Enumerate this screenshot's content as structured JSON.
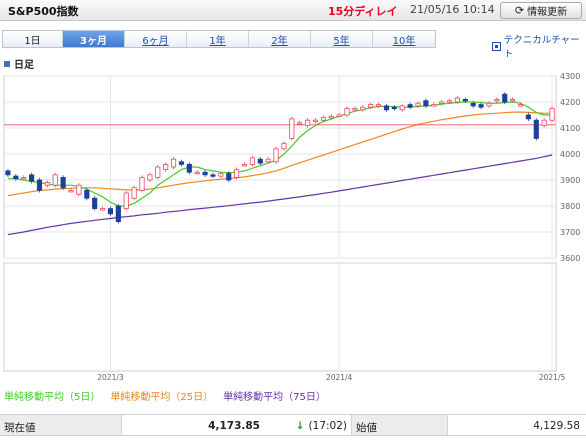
{
  "header": {
    "title": "S&P500指数",
    "delay": "15分ディレイ",
    "timestamp": "21/05/16 10:14",
    "refresh_label": "情報更新",
    "refresh_icon": "refresh-icon"
  },
  "periods": {
    "tabs": [
      "1日",
      "3ヶ月",
      "6ヶ月",
      "1年",
      "2年",
      "5年",
      "10年"
    ],
    "active": "3ヶ月"
  },
  "technical_chart_link": "テクニカルチャート",
  "daily_label": "日足",
  "chart_data": {
    "type": "candlestick",
    "y_ticks": [
      "4300",
      "4200",
      "4100",
      "4000",
      "3900",
      "3800",
      "3700",
      "3600"
    ],
    "ylim": [
      3600,
      4300
    ],
    "x_labels": [
      {
        "label": "2021/3",
        "index": 13
      },
      {
        "label": "2021/4",
        "index": 42
      },
      {
        "label": "2021/5",
        "index": 69
      }
    ],
    "reference_line": 4112,
    "candles": [
      [
        3935,
        3920
      ],
      [
        3915,
        3905
      ],
      [
        3910,
        3910
      ],
      [
        3920,
        3895
      ],
      [
        3900,
        3860
      ],
      [
        3880,
        3890
      ],
      [
        3880,
        3920
      ],
      [
        3910,
        3870
      ],
      [
        3860,
        3860
      ],
      [
        3845,
        3880
      ],
      [
        3860,
        3830
      ],
      [
        3830,
        3790
      ],
      [
        3790,
        3790
      ],
      [
        3790,
        3770
      ],
      [
        3800,
        3740
      ],
      [
        3790,
        3850
      ],
      [
        3830,
        3870
      ],
      [
        3860,
        3910
      ],
      [
        3900,
        3920
      ],
      [
        3910,
        3950
      ],
      [
        3940,
        3960
      ],
      [
        3950,
        3980
      ],
      [
        3970,
        3960
      ],
      [
        3960,
        3930
      ],
      [
        3930,
        3930
      ],
      [
        3930,
        3920
      ],
      [
        3920,
        3915
      ],
      [
        3915,
        3925
      ],
      [
        3925,
        3900
      ],
      [
        3910,
        3940
      ],
      [
        3960,
        3960
      ],
      [
        3960,
        3985
      ],
      [
        3980,
        3965
      ],
      [
        3970,
        3980
      ],
      [
        3970,
        4020
      ],
      [
        4020,
        4040
      ],
      [
        4060,
        4135
      ],
      [
        4120,
        4120
      ],
      [
        4110,
        4130
      ],
      [
        4125,
        4130
      ],
      [
        4130,
        4140
      ],
      [
        4140,
        4145
      ],
      [
        4150,
        4150
      ],
      [
        4150,
        4175
      ],
      [
        4175,
        4175
      ],
      [
        4170,
        4180
      ],
      [
        4180,
        4190
      ],
      [
        4185,
        4190
      ],
      [
        4185,
        4170
      ],
      [
        4180,
        4175
      ],
      [
        4170,
        4185
      ],
      [
        4190,
        4180
      ],
      [
        4185,
        4195
      ],
      [
        4205,
        4185
      ],
      [
        4190,
        4190
      ],
      [
        4195,
        4200
      ],
      [
        4200,
        4205
      ],
      [
        4200,
        4215
      ],
      [
        4210,
        4205
      ],
      [
        4195,
        4185
      ],
      [
        4190,
        4180
      ],
      [
        4185,
        4195
      ],
      [
        4205,
        4210
      ],
      [
        4230,
        4200
      ],
      [
        4205,
        4210
      ],
      [
        4190,
        4190
      ],
      [
        4150,
        4135
      ],
      [
        4130,
        4060
      ],
      [
        4110,
        4130
      ],
      [
        4130,
        4175
      ]
    ],
    "ma5": [
      3905,
      3905,
      3900,
      3895,
      3890,
      3885,
      3880,
      3880,
      3880,
      3875,
      3865,
      3850,
      3835,
      3815,
      3800,
      3800,
      3810,
      3830,
      3850,
      3880,
      3900,
      3920,
      3940,
      3950,
      3950,
      3940,
      3935,
      3930,
      3928,
      3930,
      3935,
      3945,
      3955,
      3965,
      3975,
      4000,
      4030,
      4065,
      4090,
      4110,
      4125,
      4135,
      4145,
      4155,
      4165,
      4170,
      4178,
      4183,
      4183,
      4182,
      4180,
      4180,
      4183,
      4185,
      4187,
      4192,
      4195,
      4198,
      4200,
      4200,
      4198,
      4195,
      4195,
      4198,
      4200,
      4195,
      4180,
      4160,
      4150,
      4150
    ],
    "ma25": [
      3840,
      3845,
      3850,
      3855,
      3860,
      3862,
      3865,
      3867,
      3868,
      3870,
      3870,
      3870,
      3868,
      3866,
      3864,
      3862,
      3862,
      3863,
      3865,
      3870,
      3875,
      3880,
      3885,
      3890,
      3893,
      3897,
      3900,
      3903,
      3906,
      3909,
      3912,
      3917,
      3922,
      3928,
      3935,
      3945,
      3956,
      3966,
      3976,
      3986,
      3996,
      4006,
      4016,
      4026,
      4036,
      4046,
      4056,
      4066,
      4076,
      4086,
      4096,
      4105,
      4113,
      4120,
      4126,
      4132,
      4137,
      4142,
      4146,
      4150,
      4153,
      4155,
      4157,
      4159,
      4161,
      4161,
      4160,
      4158,
      4157,
      4157
    ],
    "ma75": [
      3690,
      3695,
      3700,
      3706,
      3712,
      3718,
      3723,
      3728,
      3733,
      3737,
      3741,
      3745,
      3749,
      3752,
      3756,
      3759,
      3762,
      3766,
      3769,
      3772,
      3776,
      3779,
      3782,
      3786,
      3789,
      3792,
      3795,
      3798,
      3801,
      3805,
      3808,
      3812,
      3815,
      3819,
      3823,
      3827,
      3831,
      3835,
      3840,
      3844,
      3849,
      3853,
      3858,
      3863,
      3868,
      3873,
      3878,
      3883,
      3888,
      3893,
      3898,
      3903,
      3908,
      3913,
      3918,
      3923,
      3928,
      3933,
      3938,
      3943,
      3948,
      3953,
      3958,
      3963,
      3968,
      3973,
      3978,
      3983,
      3990,
      3996
    ]
  },
  "legend": {
    "ma5": "単純移動平均（5日）",
    "ma25": "単純移動平均（25日）",
    "ma75": "単純移動平均（75日）"
  },
  "colors": {
    "up": "#ee4466",
    "down": "#1f3f9c",
    "ma5": "#44cc22",
    "ma25": "#ee8822",
    "ma75": "#6633aa",
    "reference": "#ee3344"
  },
  "quote": {
    "current_label": "現在値",
    "current_value": "4,173.85",
    "change_icon": "down-arrow-icon",
    "change_time": "(17:02)",
    "open_label": "始値",
    "open_value": "4,129.58"
  }
}
